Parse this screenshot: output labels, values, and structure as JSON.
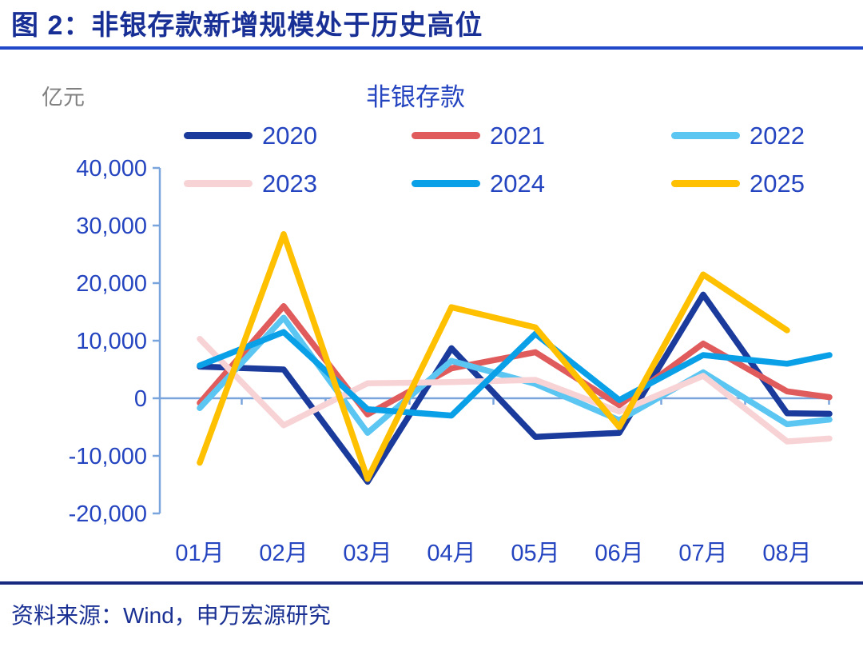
{
  "figure": {
    "title": "图 2：非银存款新增规模处于历史高位",
    "source": "资料来源：Wind，申万宏源研究"
  },
  "colors": {
    "title_text": "#182F96",
    "title_rule": "#2148C8",
    "label_blue": "#2444C0",
    "axis_line": "#7AA4DC",
    "unit_gray": "#808080",
    "bottom_rule": "#182A80",
    "source_text": "#1A3193"
  },
  "chart_data": {
    "type": "line",
    "title": "非银存款",
    "unit_label": "亿元",
    "categories": [
      "01月",
      "02月",
      "03月",
      "04月",
      "05月",
      "06月",
      "07月",
      "08月"
    ],
    "y_ticks": [
      40000,
      30000,
      20000,
      10000,
      0,
      -10000,
      -20000
    ],
    "y_tick_labels": [
      "40,000",
      "30,000",
      "20,000",
      "10,000",
      "0",
      "-10,000",
      "-20,000"
    ],
    "ylim": [
      -20000,
      40000
    ],
    "grid": false,
    "legend_position": "top",
    "legend_rows": [
      [
        "2020",
        "2021",
        "2022"
      ],
      [
        "2023",
        "2024",
        "2025"
      ]
    ],
    "series": [
      {
        "name": "2020",
        "color": "#1A3A9C",
        "values": [
          5500,
          5000,
          -14500,
          8700,
          -6700,
          -6000,
          18000,
          -2600
        ],
        "clipped_next_value": -2700
      },
      {
        "name": "2021",
        "color": "#E05C5C",
        "values": [
          -800,
          16000,
          -2800,
          5200,
          8000,
          -1200,
          9500,
          1200
        ],
        "clipped_next_value": 200
      },
      {
        "name": "2022",
        "color": "#5CC6F2",
        "values": [
          -1700,
          14000,
          -6000,
          6500,
          2500,
          -3800,
          4500,
          -4500
        ],
        "clipped_next_value": -3700
      },
      {
        "name": "2023",
        "color": "#F8D3D6",
        "values": [
          10300,
          -4700,
          2600,
          2800,
          3200,
          -2300,
          3900,
          -7500
        ],
        "clipped_next_value": -7000
      },
      {
        "name": "2024",
        "color": "#0AA0E8",
        "values": [
          5700,
          11500,
          -1900,
          -3000,
          11200,
          -300,
          7500,
          6000
        ],
        "clipped_next_value": 7500
      },
      {
        "name": "2025",
        "color": "#FFC000",
        "values": [
          -11200,
          28500,
          -14000,
          15800,
          12300,
          -5000,
          21500,
          11800
        ],
        "clipped_next_value": null
      }
    ]
  }
}
